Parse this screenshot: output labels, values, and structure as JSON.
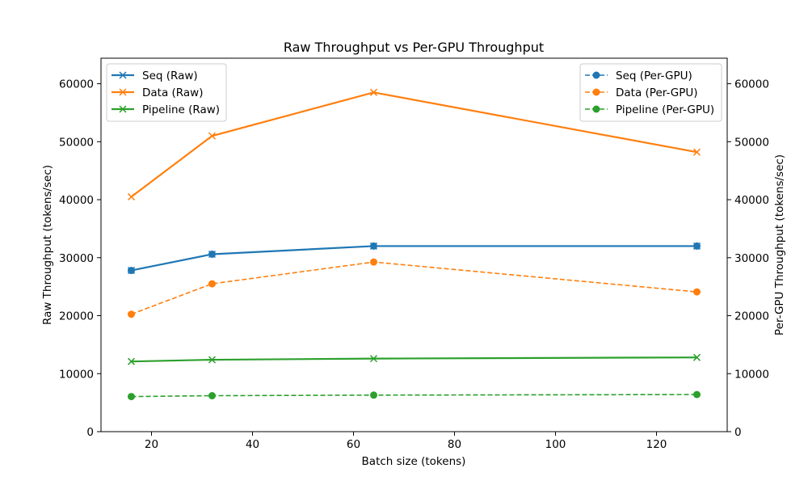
{
  "chart_data": {
    "type": "line",
    "title": "Raw Throughput vs Per-GPU Throughput",
    "xlabel": "Batch size (tokens)",
    "ylabel_left": "Raw Throughput (tokens/sec)",
    "ylabel_right": "Per-GPU Throughput (tokens/sec)",
    "x": [
      16,
      32,
      64,
      128
    ],
    "xlim": [
      10,
      134
    ],
    "ylim_left": [
      0,
      64400
    ],
    "ylim_right": [
      0,
      64400
    ],
    "x_ticks": [
      20,
      40,
      60,
      80,
      100,
      120
    ],
    "y_ticks_left": [
      0,
      10000,
      20000,
      30000,
      40000,
      50000,
      60000
    ],
    "y_ticks_right": [
      0,
      10000,
      20000,
      30000,
      40000,
      50000,
      60000
    ],
    "grid": false,
    "legend_left_placement": "upper-left",
    "legend_right_placement": "upper-right",
    "series": [
      {
        "name": "Seq (Raw)",
        "axis": "left",
        "style": "solid",
        "marker": "x",
        "color": "#1f77b4",
        "values": [
          27800,
          30600,
          32000,
          32000
        ]
      },
      {
        "name": "Data (Raw)",
        "axis": "left",
        "style": "solid",
        "marker": "x",
        "color": "#ff7f0e",
        "values": [
          40500,
          51000,
          58500,
          48200
        ]
      },
      {
        "name": "Pipeline (Raw)",
        "axis": "left",
        "style": "solid",
        "marker": "x",
        "color": "#2ca02c",
        "values": [
          12100,
          12400,
          12600,
          12800
        ]
      },
      {
        "name": "Seq (Per-GPU)",
        "axis": "right",
        "style": "dashed",
        "marker": "o",
        "color": "#1f77b4",
        "values": [
          27800,
          30600,
          32000,
          32000
        ]
      },
      {
        "name": "Data (Per-GPU)",
        "axis": "right",
        "style": "dashed",
        "marker": "o",
        "color": "#ff7f0e",
        "values": [
          20250,
          25500,
          29250,
          24100
        ]
      },
      {
        "name": "Pipeline (Per-GPU)",
        "axis": "right",
        "style": "dashed",
        "marker": "o",
        "color": "#2ca02c",
        "values": [
          6050,
          6200,
          6300,
          6400
        ]
      }
    ]
  }
}
